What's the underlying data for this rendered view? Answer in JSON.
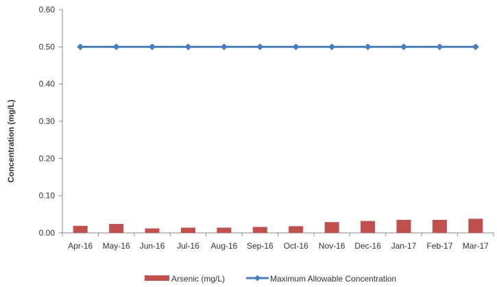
{
  "chart_data": {
    "type": "bar",
    "categories": [
      "Apr-16",
      "May-16",
      "Jun-16",
      "Jul-16",
      "Aug-16",
      "Sep-16",
      "Oct-16",
      "Nov-16",
      "Dec-16",
      "Jan-17",
      "Feb-17",
      "Mar-17"
    ],
    "series": [
      {
        "name": "Arsenic (mg/L)",
        "type": "bar",
        "color": "#c0504d",
        "values": [
          0.019,
          0.024,
          0.012,
          0.014,
          0.014,
          0.016,
          0.018,
          0.029,
          0.032,
          0.035,
          0.035,
          0.038
        ]
      },
      {
        "name": "Maximum Allowable Concentration",
        "type": "line",
        "marker": "diamond",
        "color": "#4a7ebb",
        "values": [
          0.5,
          0.5,
          0.5,
          0.5,
          0.5,
          0.5,
          0.5,
          0.5,
          0.5,
          0.5,
          0.5,
          0.5
        ]
      }
    ],
    "title": "",
    "xlabel": "",
    "ylabel": "Concentration (mg/L)",
    "ylim": [
      0,
      0.6
    ],
    "yticks": [
      "0.00",
      "0.10",
      "0.20",
      "0.30",
      "0.40",
      "0.50",
      "0.60"
    ],
    "grid": false,
    "legend_position": "bottom"
  }
}
